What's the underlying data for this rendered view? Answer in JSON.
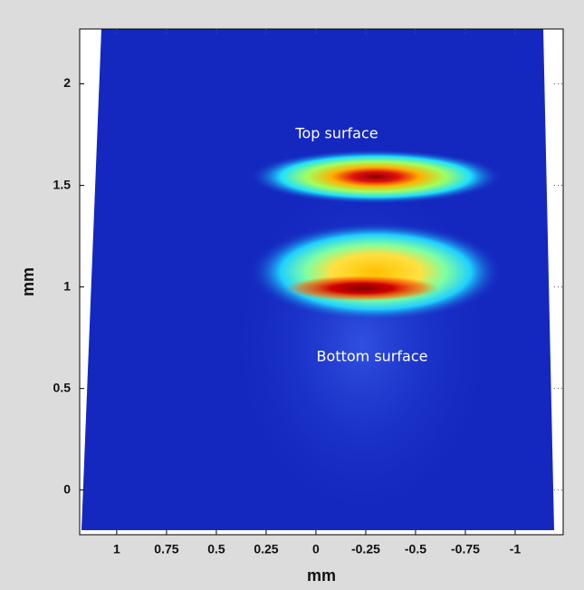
{
  "chart_data": {
    "type": "heatmap",
    "xlabel": "mm",
    "ylabel": "mm",
    "annotations": [
      "Top surface",
      "Bottom surface"
    ],
    "xlim": [
      1.186,
      -1.241
    ],
    "xticks": [
      1,
      0.75,
      0.5,
      0.25,
      0,
      -0.25,
      -0.5,
      -0.75,
      -1
    ],
    "ylim": [
      -0.22,
      2.27
    ],
    "yticks": [
      0,
      0.5,
      1,
      1.5,
      2
    ],
    "grid": true
  }
}
